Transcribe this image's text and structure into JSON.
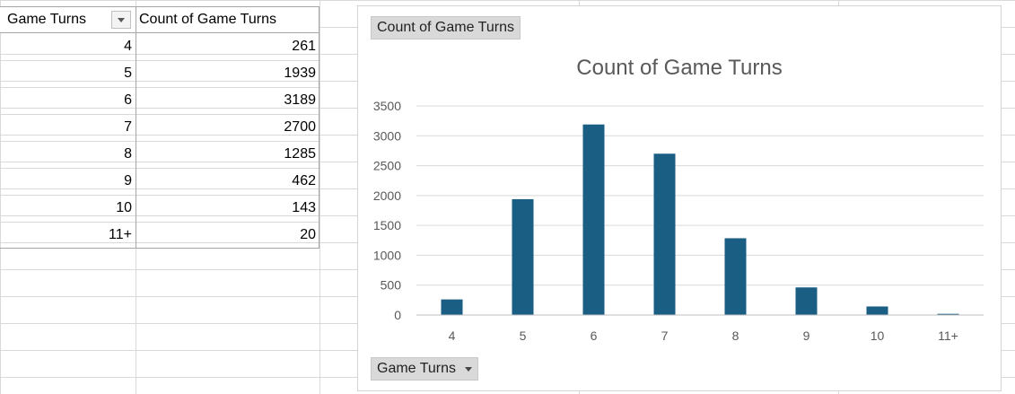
{
  "pivot_table": {
    "header": {
      "col1": "Game Turns",
      "col2": "Count of Game Turns"
    },
    "rows": [
      {
        "turns": "4",
        "count": "261"
      },
      {
        "turns": "5",
        "count": "1939"
      },
      {
        "turns": "6",
        "count": "3189"
      },
      {
        "turns": "7",
        "count": "2700"
      },
      {
        "turns": "8",
        "count": "1285"
      },
      {
        "turns": "9",
        "count": "462"
      },
      {
        "turns": "10",
        "count": "143"
      },
      {
        "turns": "11+",
        "count": "20"
      }
    ]
  },
  "chart": {
    "value_field_button": "Count of Game Turns",
    "axis_field_button": "Game Turns"
  },
  "colors": {
    "bar": "#1a5e84",
    "gridline": "#d9d9d9",
    "axis_text": "#595959"
  },
  "chart_data": {
    "type": "bar",
    "title": "Count of Game Turns",
    "categories": [
      "4",
      "5",
      "6",
      "7",
      "8",
      "9",
      "10",
      "11+"
    ],
    "values": [
      261,
      1939,
      3189,
      2700,
      1285,
      462,
      143,
      20
    ],
    "ylim": [
      0,
      3500
    ],
    "yticks": [
      0,
      500,
      1000,
      1500,
      2000,
      2500,
      3000,
      3500
    ],
    "grid": true,
    "legend": "none",
    "xlabel": "",
    "ylabel": ""
  }
}
